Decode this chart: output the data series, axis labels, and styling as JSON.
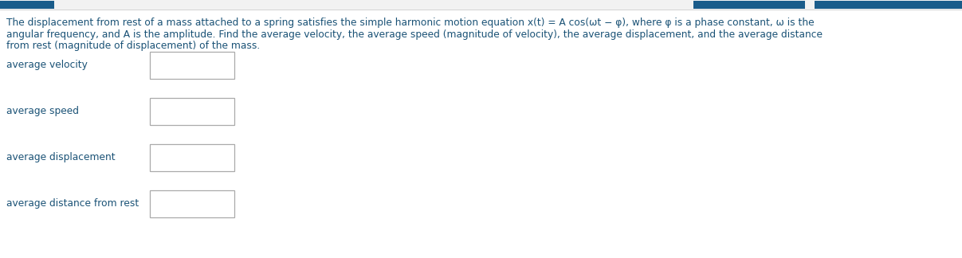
{
  "background_color": "#f5f5f5",
  "main_bg": "#ffffff",
  "paragraph_lines": [
    "The displacement from rest of a mass attached to a spring satisfies the simple harmonic motion equation x(t) = A cos(ωt − φ), where φ is a phase constant, ω is the",
    "angular frequency, and A is the amplitude. Find the average velocity, the average speed (magnitude of velocity), the average displacement, and the average distance",
    "from rest (magnitude of displacement) of the mass."
  ],
  "paragraph_color": "#1a5276",
  "paragraph_fontsize": 8.8,
  "labels": [
    "average velocity",
    "average speed",
    "average displacement",
    "average distance from rest"
  ],
  "label_color": "#1a5276",
  "label_fontsize": 8.8,
  "box_color": "#ffffff",
  "box_edge_color": "#aaaaaa",
  "header_bar_color": "#1a5c8a",
  "header_bg_color": "#f2f2f2",
  "divider_color": "#cccccc"
}
